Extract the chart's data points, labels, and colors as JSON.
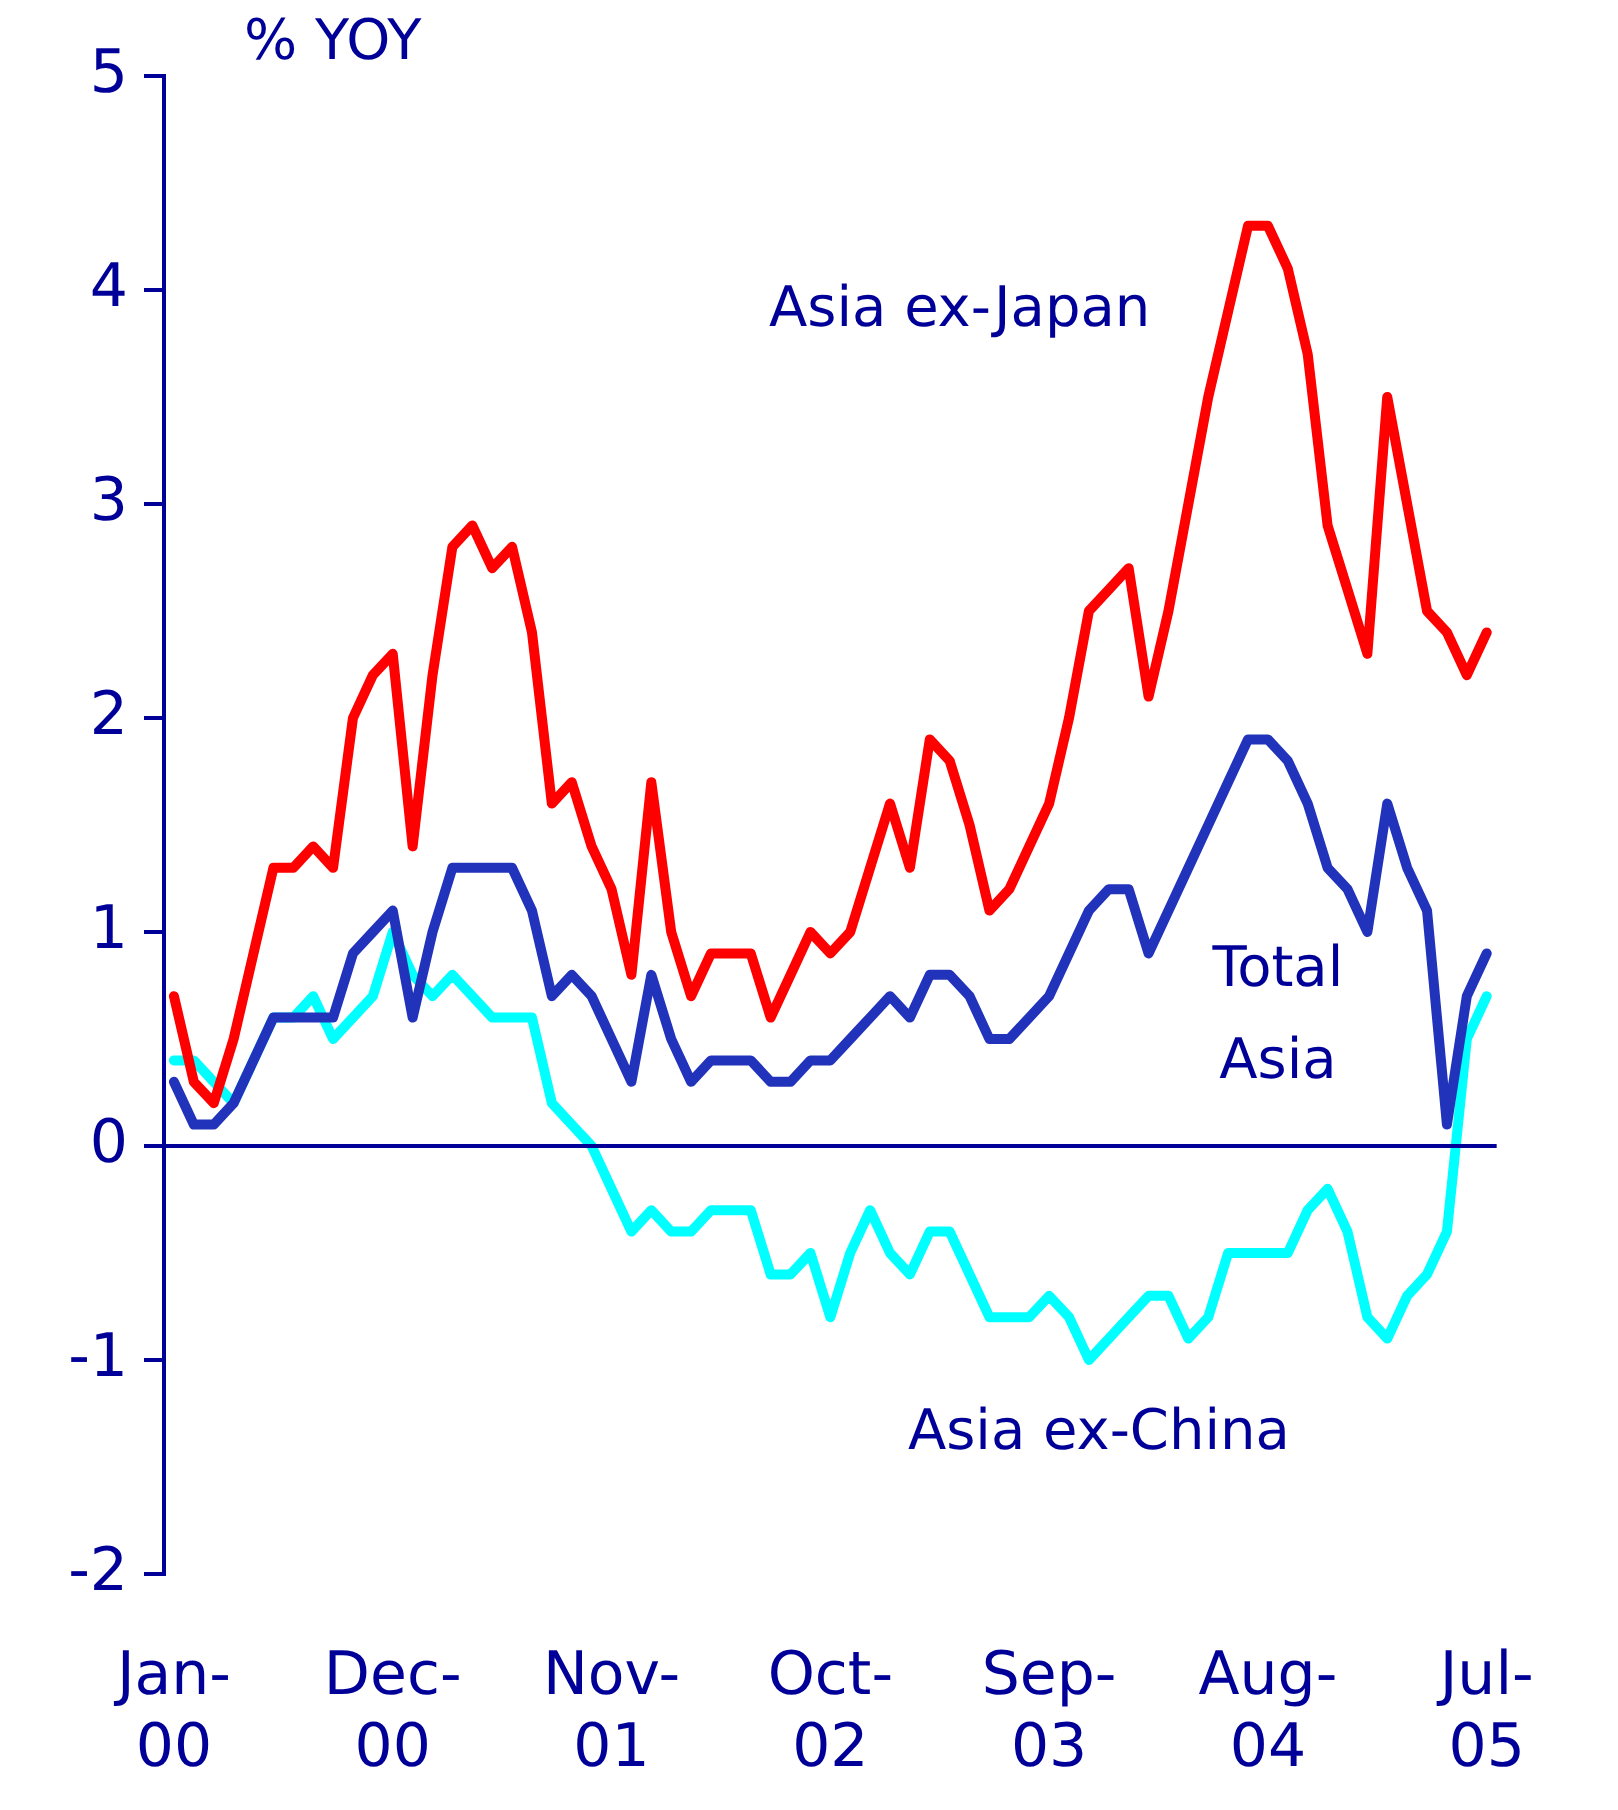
{
  "chart_data": {
    "type": "line",
    "ylabel": "% YOY",
    "categories": [
      "Jan-00",
      null,
      null,
      null,
      null,
      null,
      null,
      null,
      null,
      null,
      null,
      "Dec-00",
      null,
      null,
      null,
      null,
      null,
      null,
      null,
      null,
      null,
      null,
      "Nov-01",
      null,
      null,
      null,
      null,
      null,
      null,
      null,
      null,
      null,
      null,
      "Oct-02",
      null,
      null,
      null,
      null,
      null,
      null,
      null,
      null,
      null,
      null,
      "Sep-03",
      null,
      null,
      null,
      null,
      null,
      null,
      null,
      null,
      null,
      null,
      "Aug-04",
      null,
      null,
      null,
      null,
      null,
      null,
      null,
      null,
      null,
      null,
      "Jul-05"
    ],
    "series": [
      {
        "name": "Asia ex-Japan",
        "color": "#ff0000",
        "values": [
          0.7,
          0.3,
          0.2,
          0.5,
          0.9,
          1.3,
          1.3,
          1.4,
          1.3,
          2.0,
          2.2,
          2.3,
          1.4,
          2.2,
          2.8,
          2.9,
          2.7,
          2.8,
          2.4,
          1.6,
          1.7,
          1.4,
          1.2,
          0.8,
          1.7,
          1.0,
          0.7,
          0.9,
          0.9,
          0.9,
          0.6,
          0.8,
          1.0,
          0.9,
          1.0,
          1.3,
          1.6,
          1.3,
          1.9,
          1.8,
          1.5,
          1.1,
          1.2,
          1.4,
          1.6,
          2.0,
          2.5,
          2.6,
          2.7,
          2.1,
          2.5,
          3.0,
          3.5,
          3.9,
          4.3,
          4.3,
          4.1,
          3.7,
          2.9,
          2.6,
          2.3,
          3.5,
          3.0,
          2.5,
          2.4,
          2.2,
          2.4
        ]
      },
      {
        "name": "Total Asia",
        "color": "#2233bb",
        "values": [
          0.3,
          0.1,
          0.1,
          0.2,
          0.4,
          0.6,
          0.6,
          0.6,
          0.6,
          0.9,
          1.0,
          1.1,
          0.6,
          1.0,
          1.3,
          1.3,
          1.3,
          1.3,
          1.1,
          0.7,
          0.8,
          0.7,
          0.5,
          0.3,
          0.8,
          0.5,
          0.3,
          0.4,
          0.4,
          0.4,
          0.3,
          0.3,
          0.4,
          0.4,
          0.5,
          0.6,
          0.7,
          0.6,
          0.8,
          0.8,
          0.7,
          0.5,
          0.5,
          0.6,
          0.7,
          0.9,
          1.1,
          1.2,
          1.2,
          0.9,
          1.1,
          1.3,
          1.5,
          1.7,
          1.9,
          1.9,
          1.8,
          1.6,
          1.3,
          1.2,
          1.0,
          1.6,
          1.3,
          1.1,
          0.1,
          0.7,
          0.9
        ]
      },
      {
        "name": "Asia ex-China",
        "color": "#00ffff",
        "values": [
          0.4,
          0.4,
          0.3,
          0.2,
          0.4,
          0.6,
          0.6,
          0.7,
          0.5,
          0.6,
          0.7,
          1.0,
          0.8,
          0.7,
          0.8,
          0.7,
          0.6,
          0.6,
          0.6,
          0.2,
          0.1,
          0.0,
          -0.2,
          -0.4,
          -0.3,
          -0.4,
          -0.4,
          -0.3,
          -0.3,
          -0.3,
          -0.6,
          -0.6,
          -0.5,
          -0.8,
          -0.5,
          -0.3,
          -0.5,
          -0.6,
          -0.4,
          -0.4,
          -0.6,
          -0.8,
          -0.8,
          -0.8,
          -0.7,
          -0.8,
          -1.0,
          -0.9,
          -0.8,
          -0.7,
          -0.7,
          -0.9,
          -0.8,
          -0.5,
          -0.5,
          -0.5,
          -0.5,
          -0.3,
          -0.2,
          -0.4,
          -0.8,
          -0.9,
          -0.7,
          -0.6,
          -0.4,
          0.5,
          0.7
        ]
      }
    ],
    "ylim": [
      -2,
      5
    ],
    "yticks": [
      -2,
      -1,
      0,
      1,
      2,
      3,
      4,
      5
    ],
    "ref_lines": [
      {
        "axis": "y",
        "value": 0,
        "color": "#000099"
      }
    ],
    "marker": "none",
    "line_style": "solid"
  }
}
